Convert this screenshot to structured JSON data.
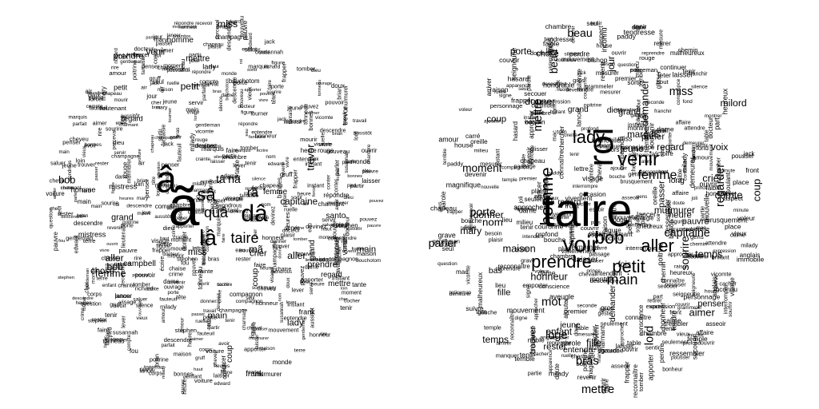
{
  "left_cloud": {
    "big": [
      "ã",
      "â"
    ],
    "large": [
      "dâ",
      "lâ",
      "taire",
      "sâ",
      "quâ",
      "tâ",
      "nâ",
      "rã",
      "mã"
    ],
    "medium": [
      "main",
      "homme",
      "frank",
      "mettre",
      "coup",
      "bob",
      "petit",
      "aller",
      "mistress",
      "miss",
      "prendre",
      "femme",
      "lady",
      "grand",
      "regard",
      "venir",
      "trevor",
      "santo",
      "chose",
      "voix",
      "campbell",
      "capitaine",
      "crier"
    ],
    "small": [
      "devinez",
      "chambre",
      "champagne",
      "tante",
      "crainte",
      "aussitôt",
      "pouvez",
      "tonneau",
      "fantaisie",
      "heures",
      "bonnes",
      "vicomte",
      "servir",
      "maison",
      "entendre",
      "donner",
      "moment",
      "répondre",
      "laisser",
      "travail",
      "porte",
      "ouvrir",
      "dame",
      "honneur",
      "parler",
      "charmant",
      "revenir",
      "descendre",
      "nouveau",
      "gentleman",
      "milady",
      "marquis",
      "heure",
      "figure",
      "docteur",
      "sourire",
      "fauteuil",
      "penser",
      "bras",
      "murmurer",
      "tomber",
      "faire",
      "tenir",
      "lever",
      "tourner",
      "instant",
      "nom",
      "tête",
      "fou",
      "jour",
      "pied",
      "eau",
      "air",
      "roi",
      "conter",
      "aimer",
      "mary",
      "stephen",
      "jack",
      "brian",
      "edward",
      "mourir",
      "trouver",
      "partir",
      "rester",
      "sortir",
      "rire",
      "pauvre",
      "vivre",
      "cher",
      "jeune",
      "haut",
      "vieux",
      "doux",
      "chaise",
      "question",
      "avoir",
      "recevoir",
      "silence",
      "compagnon",
      "passer",
      "seul",
      "loin",
      "cocher",
      "frapper",
      "lancer",
      "poitrine",
      "parfait",
      "compte",
      "mouvement",
      "rouge",
      "main",
      "amour",
      "saluer",
      "chapeau",
      "susannah",
      "bouchotom",
      "perceval",
      "wondrous",
      "lieutenant",
      "richard",
      "monde",
      "pouvoir",
      "ouvrage",
      "lettre",
      "écrire",
      "crime",
      "terre",
      "ruelle",
      "lord",
      "visage",
      "corps",
      "forcer",
      "gruff",
      "voiture",
      "apporter",
      "descendre",
      "plaisir",
      "cheveu",
      "enfant",
      "dieu",
      "cheval"
    ]
  },
  "right_cloud": {
    "big": [
      "taire",
      "roi"
    ],
    "large": [
      "voir",
      "venir",
      "bob",
      "lady",
      "prendre",
      "homme",
      "aller",
      "petit",
      "main",
      "femme"
    ],
    "medium": [
      "mettre",
      "grand",
      "temps",
      "porte",
      "coup",
      "miss",
      "demander",
      "donner",
      "parler",
      "beau",
      "fille",
      "jeune",
      "regard",
      "crier",
      "comte",
      "chose",
      "dieu",
      "voix",
      "jour",
      "pauvre",
      "aimer",
      "murmurer",
      "capitaine",
      "honneur",
      "marquis",
      "milord",
      "trouver",
      "fois",
      "nom",
      "regarder",
      "mary",
      "laisser",
      "heure",
      "moment",
      "passer",
      "penser",
      "loge",
      "lord",
      "mot",
      "long",
      "enfant",
      "sourire",
      "rester",
      "maison",
      "bas",
      "entendre",
      "bras"
    ],
    "small": [
      "manquer",
      "grammeler",
      "conscience",
      "aspect",
      "temple",
      "raison",
      "digne",
      "demeurer",
      "voleur",
      "trembler",
      "espoir",
      "profond",
      "anglais",
      "mesurer",
      "secouer",
      "seigneurie",
      "terrible",
      "malheureux",
      "arriver",
      "pousser",
      "heureux",
      "plaisir",
      "personnage",
      "soulant",
      "tenir",
      "suivre",
      "souvenir",
      "parole",
      "dame",
      "expression",
      "descendre",
      "tom",
      "gentleman",
      "signe",
      "interrompre",
      "violemment",
      "gauche",
      "immobile",
      "nouvelle",
      "ajouter",
      "attendre",
      "montrer",
      "besoin",
      "franchir",
      "miss",
      "ouvrir",
      "mac",
      "poitrine",
      "reconnaître",
      "silence",
      "jack",
      "joli",
      "amour",
      "figure",
      "part",
      "paddy",
      "tendre",
      "table",
      "chambre",
      "charmant",
      "connaître",
      "seconde",
      "approcher",
      "glisser",
      "chemin",
      "couronne",
      "couvrir",
      "cacher",
      "affaire",
      "tenir",
      "alors",
      "laisser",
      "milady",
      "frapper",
      "lancer",
      "instant",
      "seul",
      "oreille",
      "continuer",
      "devenir",
      "servir",
      "house",
      "milieu",
      "front",
      "sortir",
      "gens",
      "reprendre",
      "perdre",
      "prince",
      "faible",
      "lieu",
      "tomber",
      "seulement",
      "bout",
      "place",
      "minute",
      "vicomte",
      "ouvrir",
      "honorable",
      "premier",
      "vieux",
      "bouche",
      "revenir",
      "asseoir",
      "mouvement",
      "docteur",
      "fond",
      "toucher",
      "doux",
      "intendant",
      "mesure",
      "compagnon",
      "vivement",
      "apparence",
      "passage",
      "brusquement",
      "calme",
      "apporter",
      "rouge",
      "grave",
      "chapeau",
      "noble",
      "bishop",
      "inconnu",
      "chercher",
      "approcher",
      "sentir",
      "partie",
      "aveugle",
      "gros",
      "soir",
      "doute",
      "cheval",
      "plus",
      "policeman",
      "magnifique",
      "question",
      "hasard",
      "geste",
      "heureux",
      "conscience",
      "lettre",
      "occasion",
      "exprimer",
      "retirer",
      "ressembler",
      "brillant",
      "emporter",
      "souffrir",
      "victoire",
      "carré",
      "ruelle",
      "visage",
      "jeter",
      "bonheur",
      "tendresse",
      "sombre"
    ]
  }
}
